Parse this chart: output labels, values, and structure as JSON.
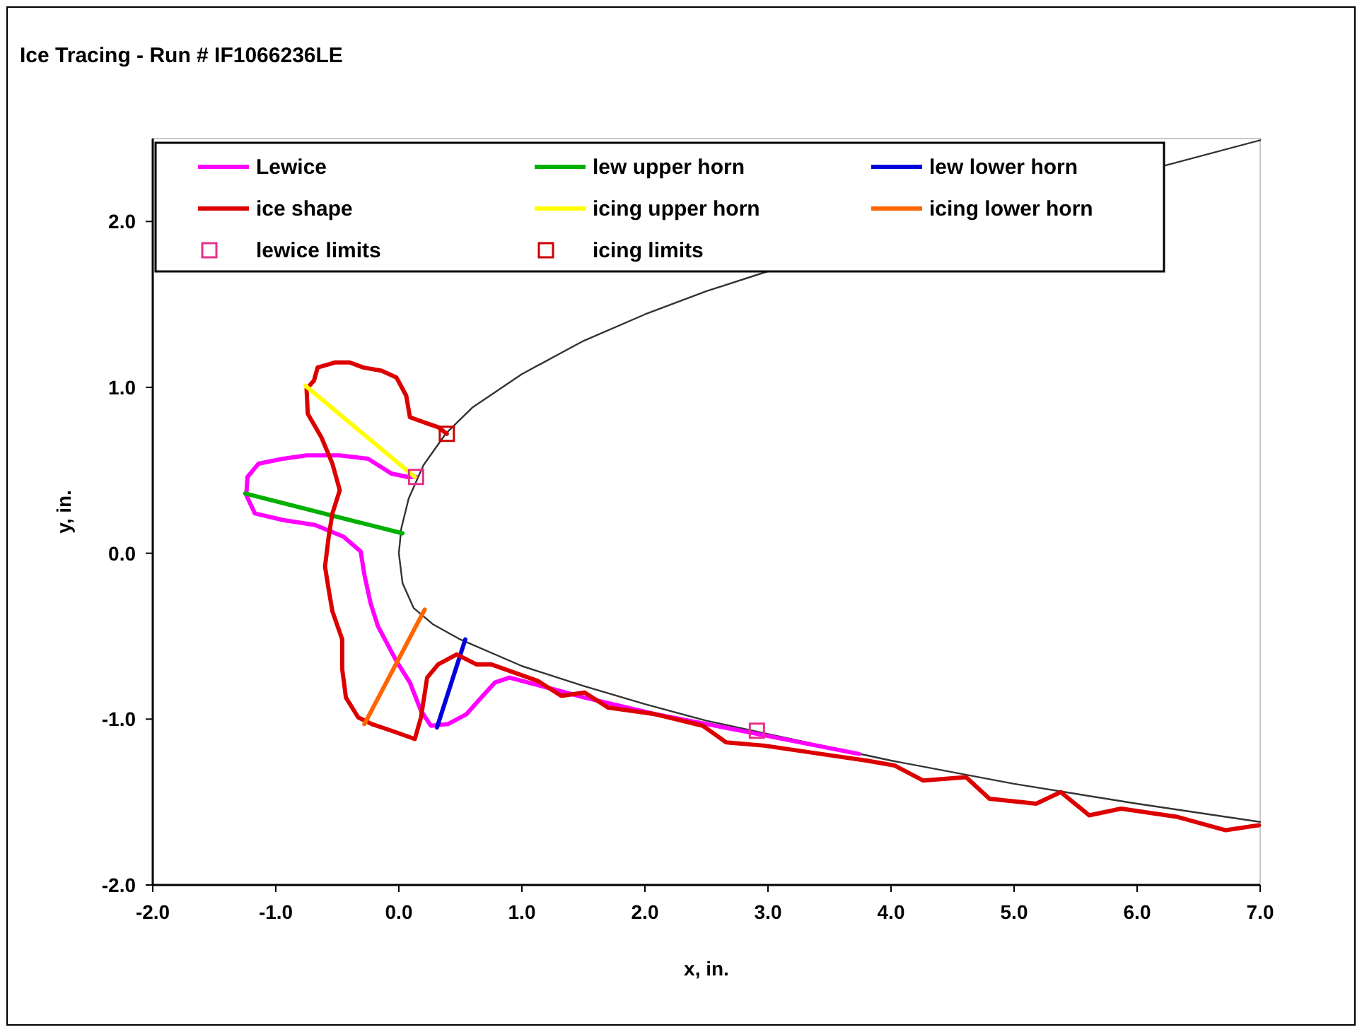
{
  "chart_data": {
    "type": "line",
    "title": "Ice Tracing - Run # IF1066236LE",
    "xlabel": "x, in.",
    "ylabel": "y, in.",
    "xlim": [
      -2,
      7
    ],
    "ylim": [
      -2,
      2.5
    ],
    "xticks": [
      {
        "value": -2,
        "label": "-2.0"
      },
      {
        "value": -1,
        "label": "-1.0"
      },
      {
        "value": 0,
        "label": "0.0"
      },
      {
        "value": 1,
        "label": "1.0"
      },
      {
        "value": 2,
        "label": "2.0"
      },
      {
        "value": 3,
        "label": "3.0"
      },
      {
        "value": 4,
        "label": "4.0"
      },
      {
        "value": 5,
        "label": "5.0"
      },
      {
        "value": 6,
        "label": "6.0"
      },
      {
        "value": 7,
        "label": "7.0"
      }
    ],
    "yticks": [
      {
        "value": -2,
        "label": "-2.0"
      },
      {
        "value": -1,
        "label": "-1.0"
      },
      {
        "value": 0,
        "label": "0.0"
      },
      {
        "value": 1,
        "label": "1.0"
      },
      {
        "value": 2,
        "label": "2.0"
      }
    ],
    "grid": false,
    "legend": "top",
    "series": [
      {
        "color": "#333333",
        "x": [
          7,
          6,
          5,
          4,
          3,
          2.5,
          2,
          1.5,
          1,
          0.6,
          0.38,
          0.2,
          0.08,
          0.02,
          0,
          0.03,
          0.12,
          0.28,
          0.5,
          1,
          1.5,
          2,
          2.5,
          3,
          3.5,
          4,
          5,
          6,
          7
        ],
        "values": [
          2.49,
          null,
          null,
          null,
          1.7,
          1.58,
          1.44,
          1.28,
          1.08,
          0.88,
          0.72,
          0.53,
          0.33,
          0.15,
          0,
          -0.18,
          -0.33,
          -0.43,
          -0.52,
          -0.68,
          -0.8,
          -0.91,
          -1.01,
          -1.09,
          -1.17,
          -1.25,
          -1.39,
          -1.51,
          -1.62
        ]
      },
      {
        "name": "Lewice",
        "color": "#ff00ff",
        "x": [
          0.14,
          0.07,
          -0.06,
          -0.25,
          -0.48,
          -0.75,
          -0.94,
          -1.14,
          -1.23,
          -1.24,
          -1.17,
          -0.94,
          -0.68,
          -0.45,
          -0.31,
          -0.28,
          -0.23,
          -0.17,
          -0.02,
          0.09,
          0.18,
          0.26,
          0.4,
          0.55,
          0.67,
          0.78,
          0.9,
          1.51,
          2.08,
          2.85,
          3.74
        ],
        "values": [
          0.46,
          0.46,
          0.48,
          0.57,
          0.59,
          0.59,
          0.57,
          0.54,
          0.46,
          0.35,
          0.24,
          0.2,
          0.17,
          0.1,
          0.01,
          -0.13,
          -0.3,
          -0.44,
          -0.65,
          -0.78,
          -0.95,
          -1.04,
          -1.03,
          -0.97,
          -0.87,
          -0.78,
          -0.75,
          -0.87,
          -0.97,
          -1.08,
          -1.21
        ]
      },
      {
        "name": "lew upper horn",
        "color": "#00b000",
        "x": [
          -1.25,
          0.03
        ],
        "values": [
          0.36,
          0.12
        ]
      },
      {
        "name": "lew lower horn",
        "color": "#0000dd",
        "x": [
          0.31,
          0.54
        ],
        "values": [
          -1.05,
          -0.52
        ]
      },
      {
        "name": "ice shape",
        "color": "#dd0000",
        "x": [
          0.39,
          0.32,
          0.24,
          0.09,
          0.06,
          -0.02,
          -0.14,
          -0.29,
          -0.4,
          -0.52,
          -0.66,
          -0.69,
          -0.75,
          -0.74,
          -0.63,
          -0.54,
          -0.48,
          -0.54,
          -0.57,
          -0.6,
          -0.57,
          -0.54,
          -0.46,
          -0.46,
          -0.43,
          -0.33,
          -0.22,
          -0.06,
          0.13,
          0.18,
          0.23,
          0.32,
          0.47,
          0.63,
          0.75,
          1.13,
          1.32,
          1.51,
          1.7,
          2.08,
          2.47,
          2.66,
          2.97,
          3.43,
          3.8,
          4.03,
          4.26,
          4.61,
          4.8,
          5.18,
          5.38,
          5.61,
          5.87,
          6.33,
          6.72,
          6.99
        ],
        "values": [
          0.72,
          0.76,
          0.78,
          0.82,
          0.95,
          1.06,
          1.1,
          1.12,
          1.15,
          1.15,
          1.12,
          1.04,
          0.99,
          0.84,
          0.7,
          0.54,
          0.38,
          0.24,
          0.1,
          -0.08,
          -0.22,
          -0.35,
          -0.52,
          -0.7,
          -0.87,
          -0.99,
          -1.03,
          -1.07,
          -1.12,
          -0.99,
          -0.75,
          -0.67,
          -0.61,
          -0.67,
          -0.67,
          -0.77,
          -0.86,
          -0.84,
          -0.93,
          -0.97,
          -1.04,
          -1.14,
          -1.16,
          -1.21,
          -1.25,
          -1.28,
          -1.37,
          -1.35,
          -1.48,
          -1.51,
          -1.44,
          -1.58,
          -1.54,
          -1.59,
          -1.67,
          -1.64
        ]
      },
      {
        "name": "icing upper horn",
        "color": "#ffff00",
        "x": [
          -0.76,
          0.13
        ],
        "values": [
          1.01,
          0.46
        ]
      },
      {
        "name": "icing lower horn",
        "color": "#ff6600",
        "x": [
          -0.28,
          0.21
        ],
        "values": [
          -1.03,
          -0.34
        ]
      },
      {
        "name": "lewice limits",
        "type": "scatter",
        "marker": "square",
        "color": "#e8308a",
        "x": [
          0.14,
          2.91
        ],
        "values": [
          0.46,
          -1.07
        ]
      },
      {
        "name": "icing limits",
        "type": "scatter",
        "marker": "square",
        "color": "#cc0000",
        "x": [
          0.39
        ],
        "values": [
          0.72
        ]
      }
    ]
  }
}
